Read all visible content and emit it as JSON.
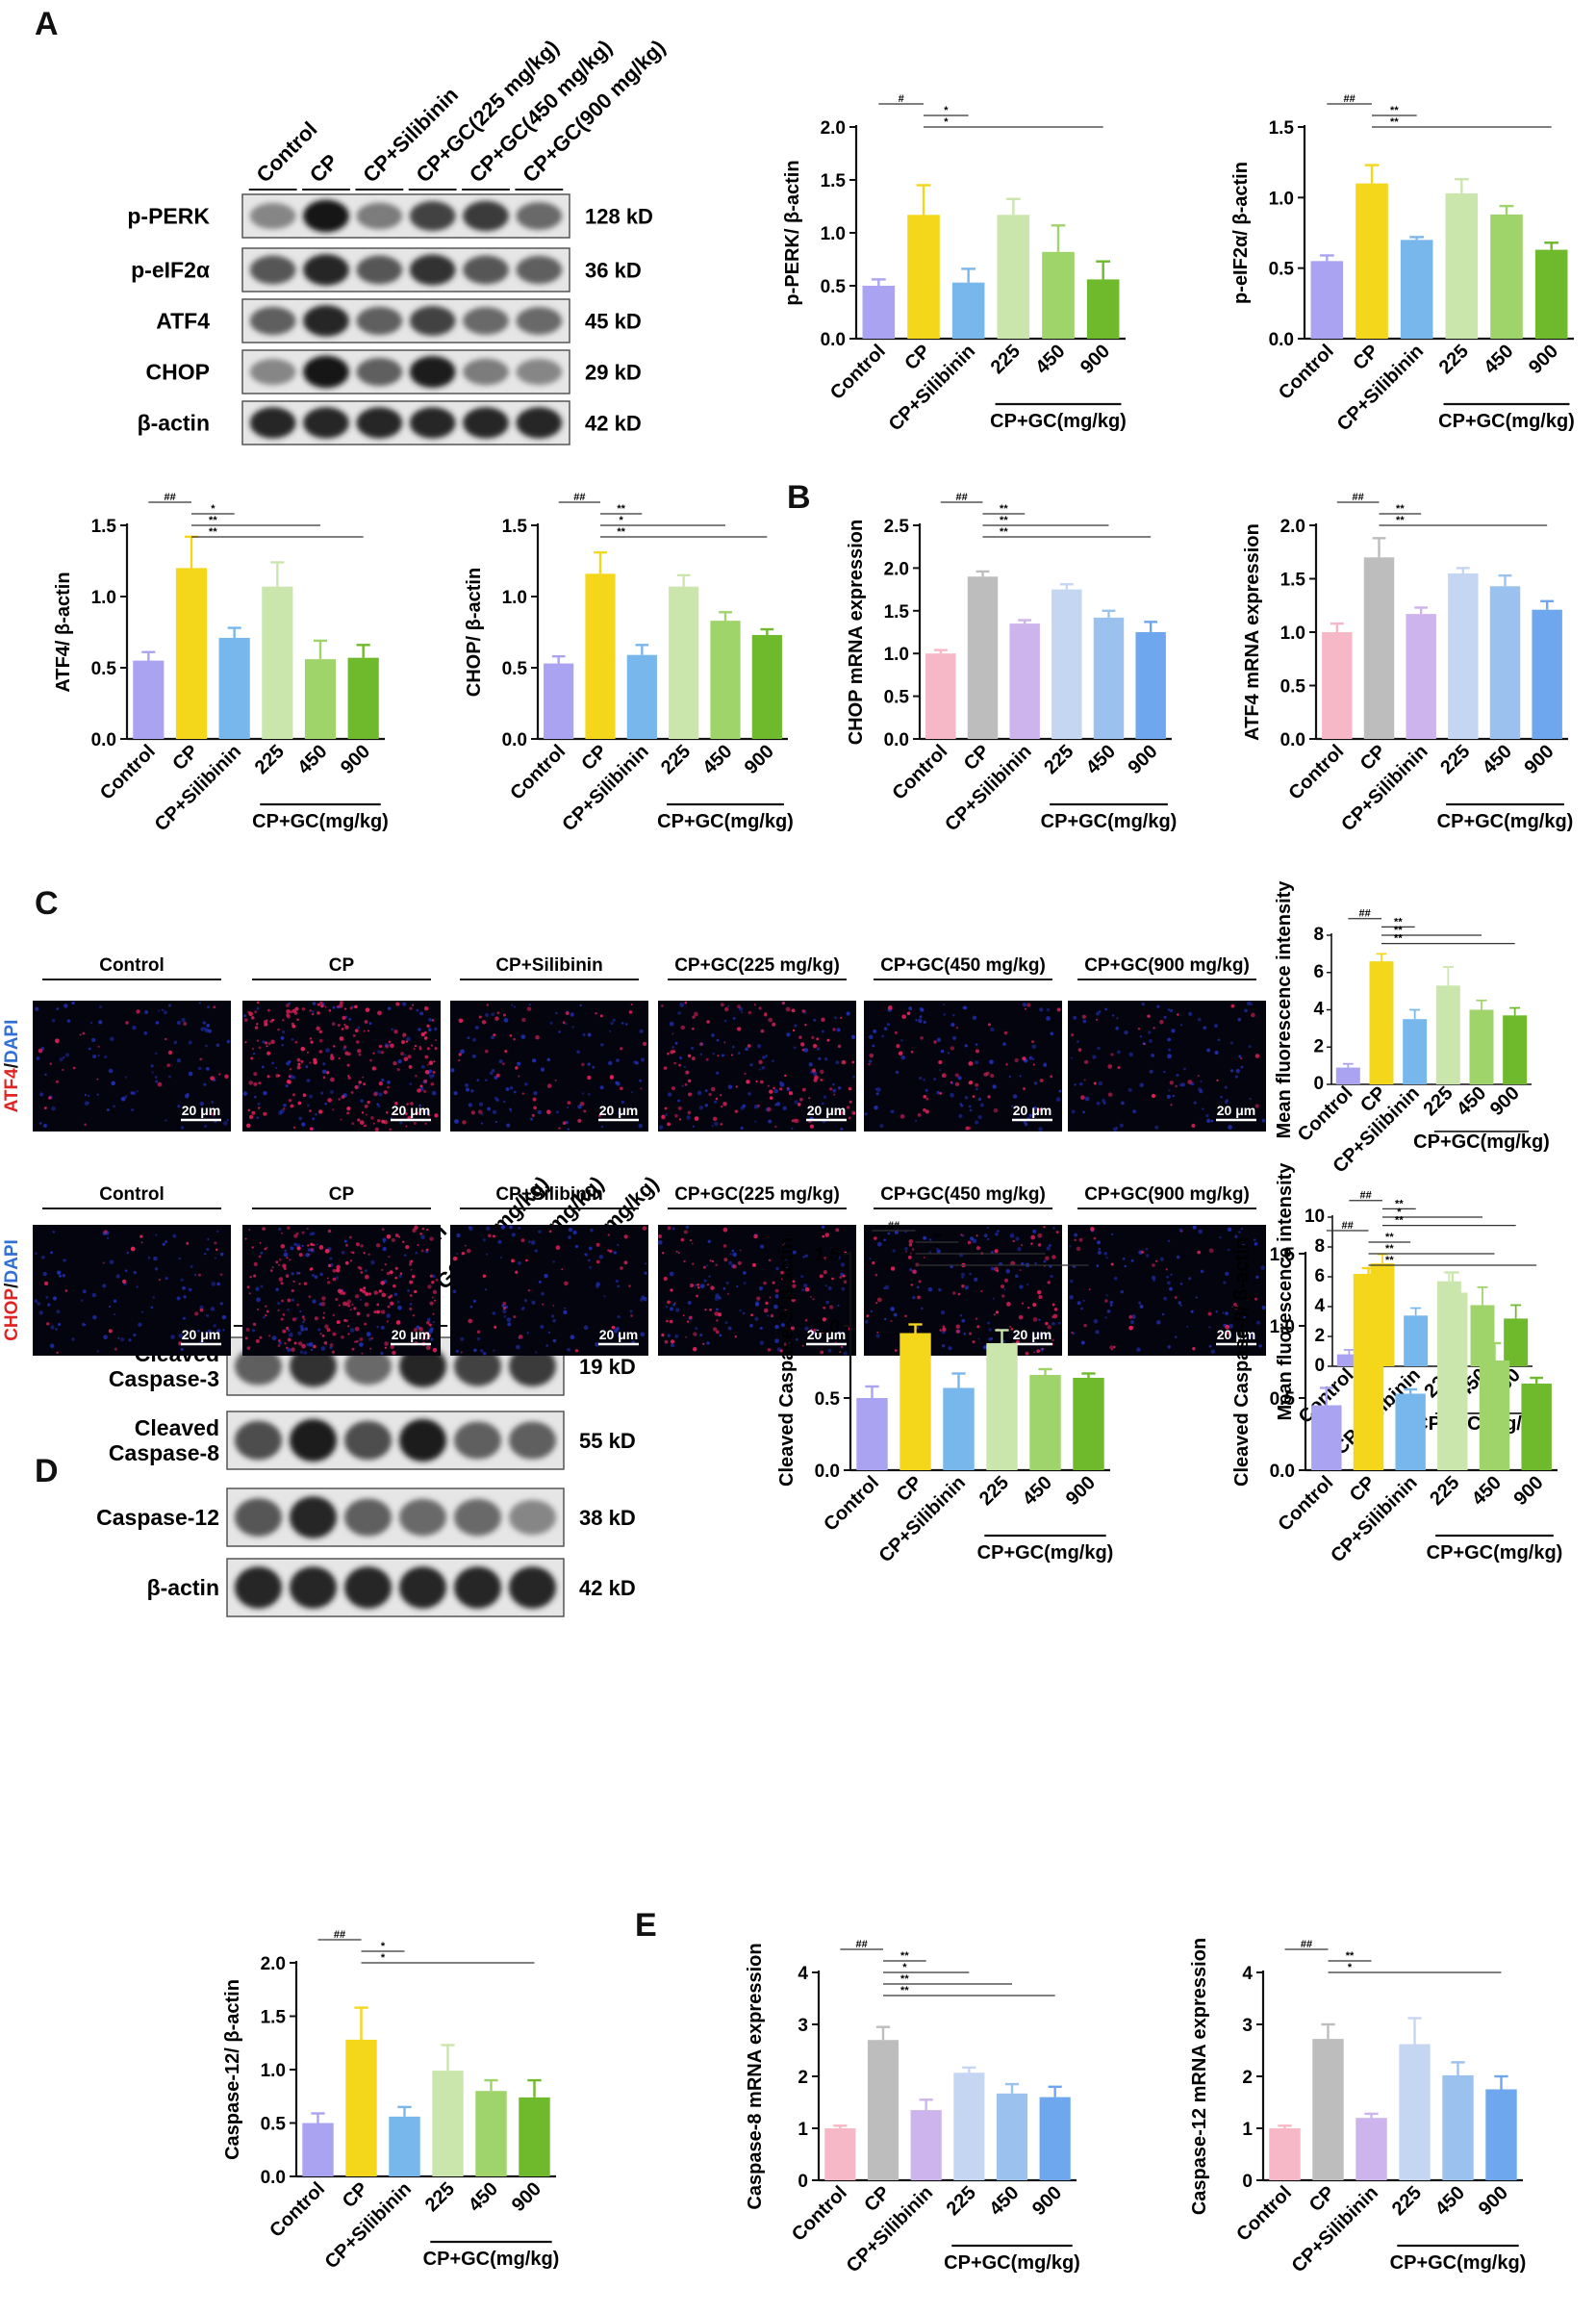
{
  "panels": {
    "A": "A",
    "B": "B",
    "C": "C",
    "D": "D",
    "E": "E"
  },
  "colors": {
    "wb_palette": [
      "#a9a3f2",
      "#f4d61a",
      "#78b7ec",
      "#cbe6ad",
      "#9ed469",
      "#6fb92c"
    ],
    "mrna_palette": [
      "#f6b7c6",
      "#bdbdbd",
      "#cdb4ec",
      "#c5d6f2",
      "#9bc1ef",
      "#6ea7ee"
    ]
  },
  "blot_A": {
    "lanes": [
      "Control",
      "CP",
      "CP+Silibinin",
      "CP+GC(225 mg/kg)",
      "CP+GC(450 mg/kg)",
      "CP+GC(900 mg/kg)"
    ],
    "rows": [
      {
        "label": "p-PERK",
        "kd": "128 kD",
        "intensity": [
          0.35,
          0.95,
          0.4,
          0.7,
          0.75,
          0.5
        ]
      },
      {
        "label": "p-eIF2α",
        "kd": "36 kD",
        "intensity": [
          0.6,
          0.85,
          0.6,
          0.8,
          0.6,
          0.55
        ]
      },
      {
        "label": "ATF4",
        "kd": "45 kD",
        "intensity": [
          0.55,
          0.85,
          0.55,
          0.7,
          0.5,
          0.5
        ]
      },
      {
        "label": "CHOP",
        "kd": "29 kD",
        "intensity": [
          0.35,
          0.95,
          0.55,
          0.9,
          0.4,
          0.35
        ]
      },
      {
        "label": "β-actin",
        "kd": "42 kD",
        "intensity": [
          0.85,
          0.85,
          0.85,
          0.85,
          0.85,
          0.85
        ]
      }
    ]
  },
  "blot_D": {
    "lanes": [
      "Control",
      "CP",
      "CP+Silibinin",
      "CP+GC(225 mg/kg)",
      "CP+GC(450 mg/kg)",
      "CP+GC(900 mg/kg)"
    ],
    "rows": [
      {
        "label": "Cleaved\nCaspase-3",
        "kd": "19 kD",
        "intensity": [
          0.55,
          0.8,
          0.5,
          0.85,
          0.7,
          0.75
        ]
      },
      {
        "label": "Cleaved\nCaspase-8",
        "kd": "55 kD",
        "intensity": [
          0.65,
          0.9,
          0.65,
          0.9,
          0.55,
          0.55
        ]
      },
      {
        "label": "Caspase-12",
        "kd": "38 kD",
        "intensity": [
          0.6,
          0.85,
          0.55,
          0.5,
          0.5,
          0.35
        ]
      },
      {
        "label": "β-actin",
        "kd": "42 kD",
        "intensity": [
          0.85,
          0.85,
          0.85,
          0.85,
          0.85,
          0.85
        ]
      }
    ]
  },
  "images_C": {
    "group_labels": [
      "Control",
      "CP",
      "CP+Silibinin",
      "CP+GC(225 mg/kg)",
      "CP+GC(450 mg/kg)",
      "CP+GC(900 mg/kg)"
    ],
    "scale_bar": "20 μm",
    "rows": [
      {
        "stain_a": "ATF4",
        "slash": "/",
        "stain_b": "DAPI",
        "red_density": [
          0.1,
          0.85,
          0.2,
          0.45,
          0.2,
          0.12
        ]
      },
      {
        "stain_a": "CHOP",
        "slash": "/",
        "stain_b": "DAPI",
        "red_density": [
          0.08,
          0.9,
          0.15,
          0.4,
          0.35,
          0.12
        ]
      }
    ]
  },
  "chart_data": [
    {
      "id": "pperk",
      "type": "bar",
      "ylabel": "p-PERK/ β-actin",
      "ylim": [
        0,
        2.0
      ],
      "yticks": [
        "0.0",
        "0.5",
        "1.0",
        "1.5",
        "2.0"
      ],
      "categories": [
        "Control",
        "CP",
        "CP+Silibinin",
        "225",
        "450",
        "900"
      ],
      "group_label": "CP+GC(mg/kg)",
      "values": [
        0.5,
        1.17,
        0.53,
        1.17,
        0.82,
        0.56
      ],
      "errors": [
        0.06,
        0.28,
        0.13,
        0.15,
        0.25,
        0.17
      ],
      "palette": "wb_palette",
      "sig": [
        {
          "from": 0,
          "to": 1,
          "label": "#"
        },
        {
          "from": 1,
          "to": 2,
          "label": "*"
        },
        {
          "from": 1,
          "to": 5,
          "label": "*"
        }
      ]
    },
    {
      "id": "peif2a",
      "type": "bar",
      "ylabel": "p-eIF2α/ β-actin",
      "ylim": [
        0,
        1.5
      ],
      "yticks": [
        "0.0",
        "0.5",
        "1.0",
        "1.5"
      ],
      "categories": [
        "Control",
        "CP",
        "CP+Silibinin",
        "225",
        "450",
        "900"
      ],
      "group_label": "CP+GC(mg/kg)",
      "values": [
        0.55,
        1.1,
        0.7,
        1.03,
        0.88,
        0.63
      ],
      "errors": [
        0.04,
        0.13,
        0.02,
        0.1,
        0.06,
        0.05
      ],
      "palette": "wb_palette",
      "sig": [
        {
          "from": 0,
          "to": 1,
          "label": "##"
        },
        {
          "from": 1,
          "to": 2,
          "label": "**"
        },
        {
          "from": 1,
          "to": 5,
          "label": "**"
        }
      ]
    },
    {
      "id": "atf4",
      "type": "bar",
      "ylabel": "ATF4/ β-actin",
      "ylim": [
        0,
        1.5
      ],
      "yticks": [
        "0.0",
        "0.5",
        "1.0",
        "1.5"
      ],
      "categories": [
        "Control",
        "CP",
        "CP+Silibinin",
        "225",
        "450",
        "900"
      ],
      "group_label": "CP+GC(mg/kg)",
      "values": [
        0.55,
        1.2,
        0.71,
        1.07,
        0.56,
        0.57
      ],
      "errors": [
        0.06,
        0.22,
        0.07,
        0.17,
        0.13,
        0.09
      ],
      "palette": "wb_palette",
      "sig": [
        {
          "from": 0,
          "to": 1,
          "label": "##"
        },
        {
          "from": 1,
          "to": 2,
          "label": "*"
        },
        {
          "from": 1,
          "to": 4,
          "label": "**"
        },
        {
          "from": 1,
          "to": 5,
          "label": "**"
        }
      ]
    },
    {
      "id": "chop",
      "type": "bar",
      "ylabel": "CHOP/ β-actin",
      "ylim": [
        0,
        1.5
      ],
      "yticks": [
        "0.0",
        "0.5",
        "1.0",
        "1.5"
      ],
      "categories": [
        "Control",
        "CP",
        "CP+Silibinin",
        "225",
        "450",
        "900"
      ],
      "group_label": "CP+GC(mg/kg)",
      "values": [
        0.53,
        1.16,
        0.59,
        1.07,
        0.83,
        0.73
      ],
      "errors": [
        0.05,
        0.15,
        0.07,
        0.08,
        0.06,
        0.04
      ],
      "palette": "wb_palette",
      "sig": [
        {
          "from": 0,
          "to": 1,
          "label": "##"
        },
        {
          "from": 1,
          "to": 2,
          "label": "**"
        },
        {
          "from": 1,
          "to": 4,
          "label": "*"
        },
        {
          "from": 1,
          "to": 5,
          "label": "**"
        }
      ]
    },
    {
      "id": "chop_mrna",
      "type": "bar",
      "ylabel": "CHOP mRNA expression",
      "ylim": [
        0,
        2.5
      ],
      "yticks": [
        "0.0",
        "0.5",
        "1.0",
        "1.5",
        "2.0",
        "2.5"
      ],
      "categories": [
        "Control",
        "CP",
        "CP+Silibinin",
        "225",
        "450",
        "900"
      ],
      "group_label": "CP+GC(mg/kg)",
      "values": [
        1.0,
        1.9,
        1.35,
        1.75,
        1.42,
        1.25
      ],
      "errors": [
        0.04,
        0.06,
        0.04,
        0.06,
        0.08,
        0.12
      ],
      "palette": "mrna_palette",
      "sig": [
        {
          "from": 0,
          "to": 1,
          "label": "##"
        },
        {
          "from": 1,
          "to": 2,
          "label": "**"
        },
        {
          "from": 1,
          "to": 4,
          "label": "**"
        },
        {
          "from": 1,
          "to": 5,
          "label": "**"
        }
      ]
    },
    {
      "id": "atf4_mrna",
      "type": "bar",
      "ylabel": "ATF4 mRNA expression",
      "ylim": [
        0,
        2.0
      ],
      "yticks": [
        "0.0",
        "0.5",
        "1.0",
        "1.5",
        "2.0"
      ],
      "categories": [
        "Control",
        "CP",
        "CP+Silibinin",
        "225",
        "450",
        "900"
      ],
      "group_label": "CP+GC(mg/kg)",
      "values": [
        1.0,
        1.7,
        1.17,
        1.55,
        1.43,
        1.21
      ],
      "errors": [
        0.08,
        0.18,
        0.06,
        0.05,
        0.1,
        0.08
      ],
      "palette": "mrna_palette",
      "sig": [
        {
          "from": 0,
          "to": 1,
          "label": "##"
        },
        {
          "from": 1,
          "to": 2,
          "label": "**"
        },
        {
          "from": 1,
          "to": 5,
          "label": "**"
        }
      ]
    },
    {
      "id": "atf4_fluor",
      "type": "bar",
      "ylabel": "Mean fluorescence intensity",
      "ylim": [
        0,
        8
      ],
      "yticks": [
        "0",
        "2",
        "4",
        "6",
        "8"
      ],
      "categories": [
        "Control",
        "CP",
        "CP+Silibinin",
        "225",
        "450",
        "900"
      ],
      "group_label": "CP+GC(mg/kg)",
      "values": [
        0.9,
        6.6,
        3.5,
        5.3,
        4.0,
        3.7
      ],
      "errors": [
        0.2,
        0.4,
        0.5,
        1.0,
        0.5,
        0.4
      ],
      "palette": "wb_palette",
      "sig": [
        {
          "from": 0,
          "to": 1,
          "label": "##"
        },
        {
          "from": 1,
          "to": 2,
          "label": "**"
        },
        {
          "from": 1,
          "to": 4,
          "label": "**"
        },
        {
          "from": 1,
          "to": 5,
          "label": "**"
        }
      ]
    },
    {
      "id": "chop_fluor",
      "type": "bar",
      "ylabel": "Mean fluorescence intensity",
      "ylim": [
        0,
        10
      ],
      "yticks": [
        "0",
        "2",
        "4",
        "6",
        "8",
        "10"
      ],
      "categories": [
        "Control",
        "CP",
        "CP+Silibinin",
        "225",
        "450",
        "900"
      ],
      "group_label": "CP+GC(mg/kg)",
      "values": [
        0.8,
        6.9,
        3.4,
        5.7,
        4.1,
        3.2
      ],
      "errors": [
        0.3,
        0.6,
        0.5,
        0.6,
        1.2,
        0.9
      ],
      "palette": "wb_palette",
      "sig": [
        {
          "from": 0,
          "to": 1,
          "label": "##"
        },
        {
          "from": 1,
          "to": 2,
          "label": "**"
        },
        {
          "from": 1,
          "to": 4,
          "label": "*"
        },
        {
          "from": 1,
          "to": 5,
          "label": "**"
        }
      ]
    },
    {
      "id": "casp3",
      "type": "bar",
      "ylabel": "Cleaved Caspase-3/ β-actin",
      "ylim": [
        0,
        1.5
      ],
      "yticks": [
        "0.0",
        "0.5",
        "1.0",
        "1.5"
      ],
      "categories": [
        "Control",
        "CP",
        "CP+Silibinin",
        "225",
        "450",
        "900"
      ],
      "group_label": "CP+GC(mg/kg)",
      "values": [
        0.5,
        0.95,
        0.57,
        0.88,
        0.66,
        0.64
      ],
      "errors": [
        0.08,
        0.06,
        0.1,
        0.09,
        0.04,
        0.03
      ],
      "palette": "wb_palette",
      "sig": [
        {
          "from": 0,
          "to": 1,
          "label": "##"
        },
        {
          "from": 1,
          "to": 2,
          "label": "**"
        },
        {
          "from": 1,
          "to": 4,
          "label": "*"
        },
        {
          "from": 1,
          "to": 5,
          "label": "*"
        }
      ]
    },
    {
      "id": "casp8",
      "type": "bar",
      "ylabel": "Cleaved Caspase-8/ β-actin",
      "ylim": [
        0,
        1.5
      ],
      "yticks": [
        "0.0",
        "0.5",
        "1.0",
        "1.5"
      ],
      "categories": [
        "Control",
        "CP",
        "CP+Silibinin",
        "225",
        "450",
        "900"
      ],
      "group_label": "CP+GC(mg/kg)",
      "values": [
        0.45,
        1.36,
        0.53,
        1.23,
        0.76,
        0.6
      ],
      "errors": [
        0.12,
        0.04,
        0.03,
        0.14,
        0.12,
        0.04
      ],
      "palette": "wb_palette",
      "sig": [
        {
          "from": 0,
          "to": 1,
          "label": "##"
        },
        {
          "from": 1,
          "to": 2,
          "label": "**"
        },
        {
          "from": 1,
          "to": 4,
          "label": "**"
        },
        {
          "from": 1,
          "to": 5,
          "label": "**"
        }
      ]
    },
    {
      "id": "casp12",
      "type": "bar",
      "ylabel": "Caspase-12/ β-actin",
      "ylim": [
        0,
        2.0
      ],
      "yticks": [
        "0.0",
        "0.5",
        "1.0",
        "1.5",
        "2.0"
      ],
      "categories": [
        "Control",
        "CP",
        "CP+Silibinin",
        "225",
        "450",
        "900"
      ],
      "group_label": "CP+GC(mg/kg)",
      "values": [
        0.5,
        1.28,
        0.56,
        0.99,
        0.8,
        0.74
      ],
      "errors": [
        0.09,
        0.3,
        0.09,
        0.24,
        0.1,
        0.16
      ],
      "palette": "wb_palette",
      "sig": [
        {
          "from": 0,
          "to": 1,
          "label": "##"
        },
        {
          "from": 1,
          "to": 2,
          "label": "*"
        },
        {
          "from": 1,
          "to": 5,
          "label": "*"
        }
      ]
    },
    {
      "id": "casp8_mrna",
      "type": "bar",
      "ylabel": "Caspase-8 mRNA expression",
      "ylim": [
        0,
        4
      ],
      "yticks": [
        "0",
        "1",
        "2",
        "3",
        "4"
      ],
      "categories": [
        "Control",
        "CP",
        "CP+Silibinin",
        "225",
        "450",
        "900"
      ],
      "group_label": "CP+GC(mg/kg)",
      "values": [
        1.0,
        2.7,
        1.35,
        2.07,
        1.67,
        1.6
      ],
      "errors": [
        0.05,
        0.25,
        0.2,
        0.1,
        0.18,
        0.2
      ],
      "palette": "mrna_palette",
      "sig": [
        {
          "from": 0,
          "to": 1,
          "label": "##"
        },
        {
          "from": 1,
          "to": 2,
          "label": "**"
        },
        {
          "from": 1,
          "to": 3,
          "label": "*"
        },
        {
          "from": 1,
          "to": 4,
          "label": "**"
        },
        {
          "from": 1,
          "to": 5,
          "label": "**"
        }
      ]
    },
    {
      "id": "casp12_mrna",
      "type": "bar",
      "ylabel": "Caspase-12 mRNA expression",
      "ylim": [
        0,
        4
      ],
      "yticks": [
        "0",
        "1",
        "2",
        "3",
        "4"
      ],
      "categories": [
        "Control",
        "CP",
        "CP+Silibinin",
        "225",
        "450",
        "900"
      ],
      "group_label": "CP+GC(mg/kg)",
      "values": [
        1.0,
        2.72,
        1.2,
        2.62,
        2.02,
        1.75
      ],
      "errors": [
        0.05,
        0.28,
        0.08,
        0.5,
        0.25,
        0.25
      ],
      "palette": "mrna_palette",
      "sig": [
        {
          "from": 0,
          "to": 1,
          "label": "##"
        },
        {
          "from": 1,
          "to": 2,
          "label": "**"
        },
        {
          "from": 1,
          "to": 5,
          "label": "*"
        }
      ]
    }
  ]
}
